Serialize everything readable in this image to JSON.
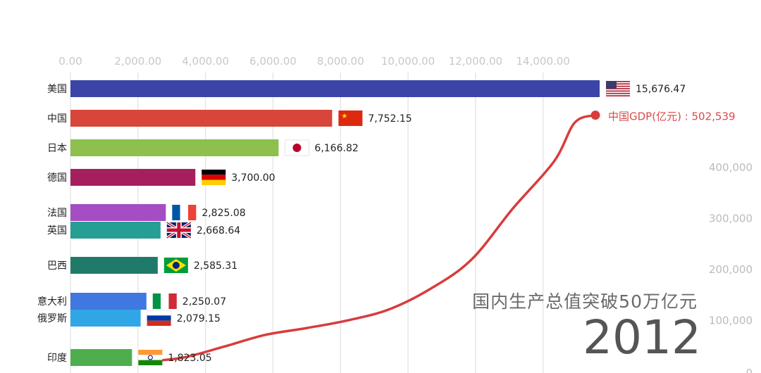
{
  "chart_data": [
    {
      "type": "bar",
      "orientation": "horizontal",
      "categories": [
        "美国",
        "中国",
        "日本",
        "德国",
        "法国",
        "英国",
        "巴西",
        "意大利",
        "俄罗斯",
        "印度"
      ],
      "values": [
        15676.47,
        7752.15,
        6166.82,
        3700.0,
        2825.08,
        2668.64,
        2585.31,
        2250.07,
        2079.15,
        1823.05
      ],
      "value_labels": [
        "15,676.47",
        "7,752.15",
        "6,166.82",
        "3,700.00",
        "2,825.08",
        "2,668.64",
        "2,585.31",
        "2,250.07",
        "2,079.15",
        "1,823.05"
      ],
      "colors": [
        "#3b45a8",
        "#d8453a",
        "#8dc04c",
        "#a51f5e",
        "#a54dc2",
        "#279e93",
        "#1f7a6a",
        "#3f78e0",
        "#31a6e6",
        "#4eae4e"
      ],
      "flags": [
        "us-flag",
        "cn-flag",
        "jp-flag",
        "de-flag",
        "fr-flag",
        "gb-flag",
        "br-flag",
        "it-flag",
        "ru-flag",
        "in-flag"
      ],
      "x_ticks": [
        "0.00",
        "2,000.00",
        "4,000.00",
        "6,000.00",
        "8,000.00",
        "10,000.00",
        "12,000.00",
        "14,000.00"
      ],
      "xlim": [
        0,
        16000
      ],
      "axis_position": "top",
      "grid": true
    },
    {
      "type": "line",
      "series": [
        {
          "name": "中国GDP(亿元)",
          "x": [
            1990,
            1992,
            1994,
            1996,
            1998,
            2000,
            2002,
            2004,
            2006,
            2008,
            2010,
            2011,
            2012
          ],
          "values": [
            18873,
            27195,
            48638,
            71814,
            85196,
            100280,
            121717,
            161840,
            219439,
            319516,
            412119,
            487940,
            502539
          ],
          "color": "#d83c3c"
        }
      ],
      "end_label": "中国GDP(亿元) : 502,539",
      "y_ticks": [
        "100,000",
        "200,000",
        "300,000",
        "400,000"
      ],
      "y_tick_values": [
        100000,
        200000,
        300000,
        400000
      ],
      "axis_position": "right"
    }
  ],
  "caption": "国内生产总值突破50万亿元",
  "year": "2012"
}
